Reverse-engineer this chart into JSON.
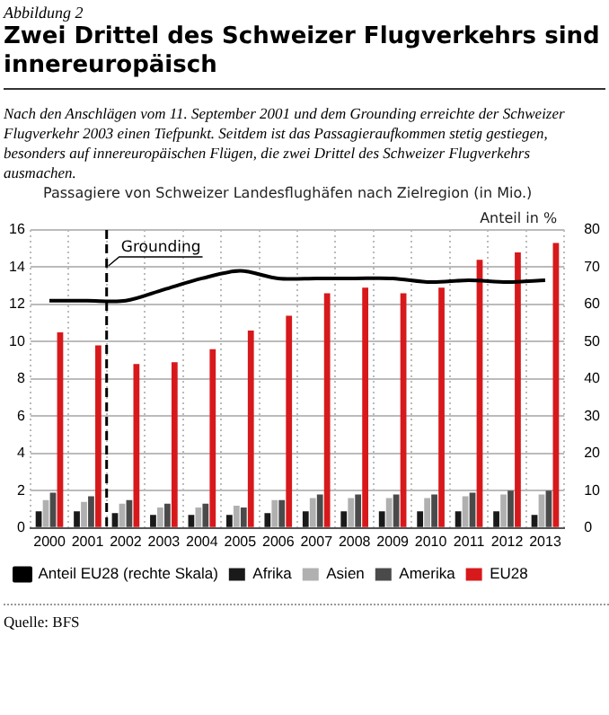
{
  "chart_data": {
    "type": "bar",
    "title": "Zwei Drittel des Schweizer Flugverkehrs sind innereuropäisch",
    "subtitle": "Nach den Anschlägen vom 11. September 2001 und dem Grounding erreichte der Schweizer Flugverkehr 2003 einen Tiefpunkt. Seitdem ist das Passagieraufkommen stetig gestiegen, besonders auf innereuropäischen Flügen, die zwei Drittel des Schweizer Flugverkehrs ausmachen.",
    "annotations": [
      "Abbildung 2",
      "Quelle: BFS"
    ],
    "ylabel": "Passagiere von Schweizer Landesflughäfen nach Zielregion (in Mio.)",
    "y2label": "Anteil in %",
    "categories": [
      "2000",
      "2001",
      "2002",
      "2003",
      "2004",
      "2005",
      "2006",
      "2007",
      "2008",
      "2009",
      "2010",
      "2011",
      "2012",
      "2013"
    ],
    "series": [
      {
        "name": "Afrika",
        "color": "#1a1a1a",
        "values": [
          0.9,
          0.9,
          0.8,
          0.7,
          0.7,
          0.7,
          0.8,
          0.9,
          0.9,
          0.9,
          0.9,
          0.9,
          0.9,
          0.7
        ]
      },
      {
        "name": "Asien",
        "color": "#b0b0b0",
        "values": [
          1.5,
          1.4,
          1.3,
          1.1,
          1.1,
          1.2,
          1.5,
          1.6,
          1.6,
          1.6,
          1.6,
          1.7,
          1.8,
          1.8
        ]
      },
      {
        "name": "Amerika",
        "color": "#4a4a4a",
        "values": [
          1.9,
          1.7,
          1.5,
          1.3,
          1.3,
          1.1,
          1.5,
          1.8,
          1.8,
          1.8,
          1.8,
          1.9,
          2.0,
          2.0
        ]
      },
      {
        "name": "EU28",
        "color": "#d7191c",
        "values": [
          10.5,
          9.8,
          8.8,
          8.9,
          9.6,
          10.6,
          11.4,
          12.6,
          12.9,
          12.6,
          12.9,
          14.4,
          14.8,
          15.3
        ]
      },
      {
        "name": "Anteil EU28 (rechte Skala)",
        "type": "line",
        "axis": "y2",
        "color": "#000000",
        "values": [
          61,
          61,
          61,
          64,
          67,
          69,
          67,
          67,
          67,
          67,
          66,
          66.5,
          66,
          66.5
        ]
      }
    ],
    "ylim": [
      0,
      16
    ],
    "yticks": [
      0,
      2,
      4,
      6,
      8,
      10,
      12,
      14,
      16
    ],
    "y2lim": [
      0,
      80
    ],
    "y2ticks": [
      0,
      10,
      20,
      30,
      40,
      50,
      60,
      70,
      80
    ],
    "ref_lines": [
      {
        "axis": "x",
        "value": "2002",
        "label": "Grounding",
        "line_style": "dashed"
      }
    ],
    "grid": true,
    "legend": "bottom",
    "marker": "none"
  }
}
